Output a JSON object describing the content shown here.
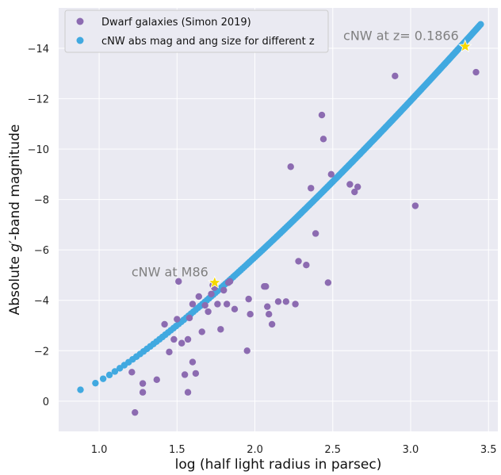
{
  "chart_data": {
    "type": "scatter",
    "xlabel": "log (half light radius in parsec)",
    "ylabel_parts": [
      "Absolute ",
      "g",
      "′",
      "-band magnitude"
    ],
    "xlim": [
      0.74,
      3.56
    ],
    "ylim": [
      1.2,
      -15.6
    ],
    "xticks": [
      1.0,
      1.5,
      2.0,
      2.5,
      3.0,
      3.5
    ],
    "xtick_labels": [
      "1.0",
      "1.5",
      "2.0",
      "2.5",
      "3.0",
      "3.5"
    ],
    "yticks": [
      0,
      -2,
      -4,
      -6,
      -8,
      -10,
      -12,
      -14
    ],
    "ytick_labels": [
      "0",
      "−2",
      "−4",
      "−6",
      "−8",
      "−10",
      "−12",
      "−14"
    ],
    "grid": true,
    "legend_position": "top-left",
    "colors": {
      "background": "#eaeaf2",
      "dwarf": "#8c6bb1",
      "cnw": "#41a9e0",
      "star": "#f5d800"
    },
    "series": [
      {
        "name": "Dwarf galaxies (Simon 2019)",
        "x": [
          1.23,
          1.28,
          1.28,
          1.37,
          1.42,
          1.45,
          1.48,
          1.5,
          1.53,
          1.55,
          1.57,
          1.57,
          1.58,
          1.6,
          1.6,
          1.62,
          1.64,
          1.66,
          1.68,
          1.7,
          1.72,
          1.74,
          1.76,
          1.78,
          1.8,
          1.82,
          1.83,
          1.87,
          1.95,
          1.96,
          1.97,
          2.07,
          2.08,
          2.09,
          2.11,
          2.15,
          2.2,
          2.26,
          1.21,
          1.51,
          1.73,
          1.84,
          2.06,
          2.23,
          2.28,
          2.33,
          2.36,
          2.39,
          2.43,
          2.44,
          2.47,
          2.49,
          2.61,
          2.64,
          2.66,
          2.9,
          3.03,
          3.42
        ],
        "y": [
          0.45,
          -0.35,
          -0.7,
          -0.85,
          -3.05,
          -1.95,
          -2.45,
          -3.25,
          -2.3,
          -1.05,
          -0.35,
          -2.45,
          -3.3,
          -1.55,
          -3.85,
          -1.1,
          -4.15,
          -2.75,
          -3.8,
          -3.55,
          -4.25,
          -4.5,
          -3.85,
          -2.85,
          -4.4,
          -3.85,
          -4.7,
          -3.65,
          -2.0,
          -4.05,
          -3.45,
          -4.55,
          -3.75,
          -3.45,
          -3.05,
          -3.95,
          -3.95,
          -3.85,
          -1.15,
          -4.75,
          -4.6,
          -4.75,
          -4.55,
          -9.3,
          -5.55,
          -5.4,
          -8.45,
          -6.65,
          -11.35,
          -10.4,
          -4.7,
          -9.0,
          -8.6,
          -8.3,
          -8.5,
          -12.9,
          -7.75,
          -13.05
        ]
      },
      {
        "name": "cNW abs mag and ang size for different z",
        "x_start": 0.88,
        "x_end": 3.45,
        "y_start": -0.45,
        "y_end": -14.95
      }
    ],
    "annotations": [
      {
        "text": "cNW at M86",
        "x": 1.742,
        "y": -4.7
      },
      {
        "text": "cNW at z= 0.1866",
        "x": 3.35,
        "y": -14.07
      }
    ]
  }
}
